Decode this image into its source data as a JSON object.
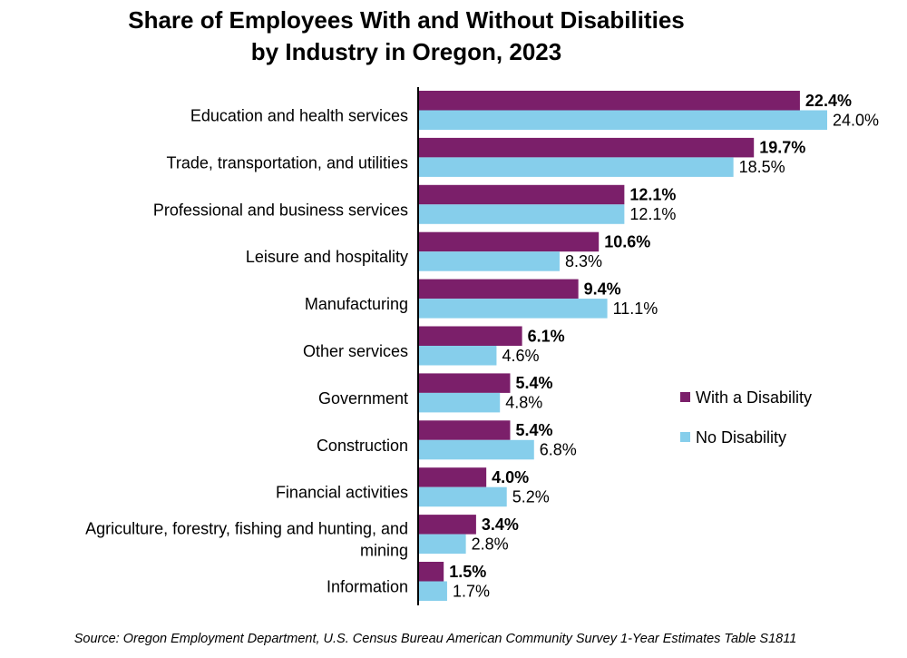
{
  "chart_data": {
    "type": "bar",
    "orientation": "horizontal",
    "title": [
      "Share of Employees With and Without Disabilities",
      "by Industry in Oregon, 2023"
    ],
    "categories": [
      [
        "Education and health services"
      ],
      [
        "Trade, transportation, and utilities"
      ],
      [
        "Professional and business services"
      ],
      [
        "Leisure and hospitality"
      ],
      [
        "Manufacturing"
      ],
      [
        "Other services"
      ],
      [
        "Government "
      ],
      [
        "Construction"
      ],
      [
        "Financial activities"
      ],
      [
        "Agriculture, forestry, fishing and hunting, and",
        "mining"
      ],
      [
        "Information"
      ]
    ],
    "series": [
      {
        "name": "With a Disability",
        "color": "#7B1F6A",
        "values": [
          22.4,
          19.7,
          12.1,
          10.6,
          9.4,
          6.1,
          5.4,
          5.4,
          4.0,
          3.4,
          1.5
        ],
        "labels": [
          "22.4%",
          "19.7%",
          "12.1%",
          "10.6%",
          "9.4%",
          "6.1%",
          "5.4%",
          "5.4%",
          "4.0%",
          "3.4%",
          "1.5%"
        ]
      },
      {
        "name": "No Disability",
        "color": "#86CEEB",
        "values": [
          24.0,
          18.5,
          12.1,
          8.3,
          11.1,
          4.6,
          4.8,
          6.8,
          5.2,
          2.8,
          1.7
        ],
        "labels": [
          "24.0%",
          "18.5%",
          "12.1%",
          "8.3%",
          "11.1%",
          "4.6%",
          "4.8%",
          "6.8%",
          "5.2%",
          "2.8%",
          "1.7%"
        ]
      }
    ],
    "xlim": [
      0,
      24.0
    ],
    "grid": false,
    "legend_position": "right",
    "source": "Source: Oregon Employment Department, U.S. Census Bureau American Community Survey 1-Year Estimates Table S1811"
  }
}
